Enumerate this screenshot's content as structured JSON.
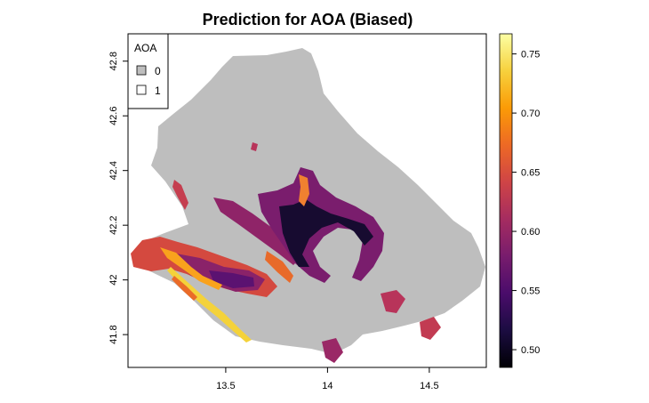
{
  "title": "Prediction for AOA (Biased)",
  "map": {
    "x_ticks": [
      {
        "value": 13.5,
        "label": "13.5"
      },
      {
        "value": 14,
        "label": "14"
      },
      {
        "value": 14.5,
        "label": "14.5"
      }
    ],
    "y_ticks": [
      {
        "value": 41.8,
        "label": "41.8"
      },
      {
        "value": 42,
        "label": "42"
      },
      {
        "value": 42.2,
        "label": "42.2"
      },
      {
        "value": 42.4,
        "label": "42.4"
      },
      {
        "value": 42.6,
        "label": "42.6"
      },
      {
        "value": 42.8,
        "label": "42.8"
      }
    ],
    "xlim": [
      13.02,
      14.78
    ],
    "ylim": [
      41.68,
      42.9
    ],
    "region_color": "#bebebe"
  },
  "legend": {
    "title": "AOA",
    "items": [
      {
        "label": "0",
        "color": "#bebebe"
      },
      {
        "label": "1",
        "color": "#ffffff"
      }
    ]
  },
  "colorbar": {
    "range": [
      0.485,
      0.767
    ],
    "ticks": [
      {
        "value": 0.5,
        "label": "0.50"
      },
      {
        "value": 0.55,
        "label": "0.55"
      },
      {
        "value": 0.6,
        "label": "0.60"
      },
      {
        "value": 0.65,
        "label": "0.65"
      },
      {
        "value": 0.7,
        "label": "0.70"
      },
      {
        "value": 0.75,
        "label": "0.75"
      }
    ],
    "palette": [
      "#000004",
      "#1b0c41",
      "#4a0c6b",
      "#781c6d",
      "#a52c60",
      "#cf4446",
      "#ed6925",
      "#fb9b06",
      "#f7d13d",
      "#fcffa4"
    ]
  }
}
